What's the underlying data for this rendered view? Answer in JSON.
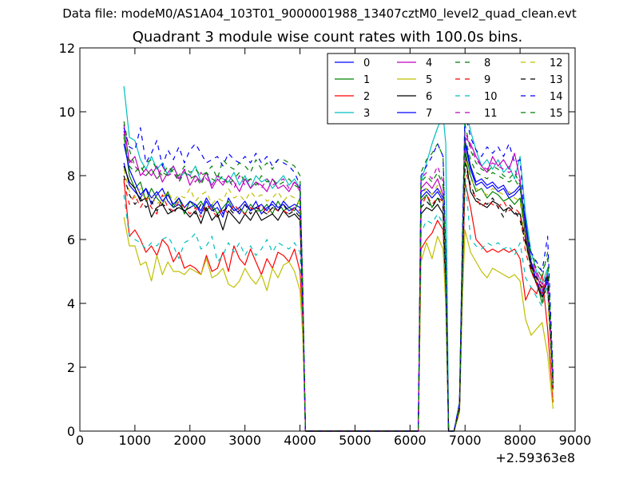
{
  "figure": {
    "suptitle": "Data file: modeM0/AS1A04_103T01_9000001988_13407cztM0_level2_quad_clean.evt"
  },
  "chart_data": {
    "type": "line",
    "title": "Quadrant 3 module wise count rates with 100.0s bins.",
    "xlabel": "",
    "ylabel": "",
    "x_offset_label": "+2.59363e8",
    "xlim": [
      0,
      9000
    ],
    "ylim": [
      0,
      12
    ],
    "xticks": [
      0,
      1000,
      2000,
      3000,
      4000,
      5000,
      6000,
      7000,
      8000,
      9000
    ],
    "yticks": [
      0,
      2,
      4,
      6,
      8,
      10,
      12
    ],
    "grid": false,
    "legend_position": "top-right",
    "legend_columns": 4,
    "x": [
      800,
      900,
      1000,
      1100,
      1200,
      1300,
      1400,
      1500,
      1600,
      1700,
      1800,
      1900,
      2000,
      2100,
      2200,
      2300,
      2400,
      2500,
      2600,
      2700,
      2800,
      2900,
      3000,
      3100,
      3200,
      3300,
      3400,
      3500,
      3600,
      3700,
      3800,
      3900,
      4000,
      4050,
      4100,
      4150,
      6100,
      6150,
      6200,
      6300,
      6400,
      6500,
      6600,
      6650,
      6700,
      6750,
      6800,
      6900,
      6950,
      7000,
      7100,
      7200,
      7300,
      7400,
      7500,
      7600,
      7700,
      7800,
      7900,
      8000,
      8100,
      8200,
      8300,
      8400,
      8500,
      8600
    ],
    "series": [
      {
        "name": "0",
        "color": "#0000ff",
        "dash": "solid",
        "values": [
          8.4,
          7.7,
          7.5,
          7.3,
          7.6,
          7.1,
          7.4,
          7.6,
          7.2,
          7.0,
          7.1,
          6.9,
          7.0,
          7.1,
          6.8,
          7.2,
          6.9,
          7.0,
          6.7,
          7.3,
          7.0,
          6.8,
          7.1,
          6.9,
          7.2,
          6.8,
          7.0,
          7.1,
          6.9,
          7.2,
          7.0,
          7.1,
          7.0,
          4.0,
          0.0,
          0.0,
          0.0,
          0.0,
          7.3,
          7.5,
          7.3,
          7.5,
          7.2,
          5.0,
          0.0,
          0.0,
          0.0,
          0.8,
          5.0,
          9.0,
          8.2,
          7.7,
          7.8,
          7.6,
          7.7,
          7.5,
          7.6,
          7.3,
          7.4,
          7.6,
          6.5,
          5.2,
          4.6,
          4.2,
          4.7,
          1.5
        ]
      },
      {
        "name": "1",
        "color": "#008000",
        "dash": "solid",
        "values": [
          9.3,
          8.0,
          7.6,
          7.8,
          7.2,
          7.6,
          7.3,
          7.1,
          7.5,
          7.0,
          7.3,
          6.8,
          7.2,
          7.0,
          7.2,
          6.9,
          7.1,
          6.8,
          7.0,
          7.2,
          6.9,
          7.0,
          6.8,
          7.1,
          6.9,
          6.9,
          7.1,
          6.8,
          7.2,
          6.9,
          7.0,
          6.9,
          7.3,
          4.0,
          0.0,
          0.0,
          0.0,
          0.0,
          7.2,
          7.4,
          7.0,
          7.3,
          7.2,
          5.0,
          0.0,
          0.0,
          0.0,
          0.8,
          5.0,
          8.8,
          8.0,
          7.5,
          7.6,
          7.3,
          7.5,
          7.4,
          7.2,
          7.3,
          7.1,
          7.3,
          6.2,
          5.0,
          4.7,
          4.0,
          5.0,
          1.5
        ]
      },
      {
        "name": "2",
        "color": "#ff0000",
        "dash": "solid",
        "values": [
          7.9,
          6.1,
          6.3,
          6.0,
          5.6,
          5.8,
          5.5,
          6.0,
          5.8,
          5.3,
          5.6,
          5.1,
          5.2,
          5.1,
          4.9,
          5.5,
          5.0,
          5.1,
          5.6,
          5.0,
          5.8,
          5.4,
          5.2,
          5.7,
          5.3,
          4.9,
          5.4,
          5.1,
          5.6,
          5.5,
          5.3,
          5.7,
          5.0,
          3.5,
          0.0,
          0.0,
          0.0,
          0.0,
          5.7,
          6.0,
          6.2,
          6.6,
          6.3,
          4.2,
          0.0,
          0.0,
          0.0,
          0.6,
          4.3,
          7.8,
          7.0,
          6.0,
          5.8,
          5.6,
          5.7,
          5.6,
          5.7,
          5.6,
          5.7,
          5.4,
          4.1,
          4.5,
          4.3,
          4.9,
          3.2,
          0.9
        ]
      },
      {
        "name": "3",
        "color": "#00bfbf",
        "dash": "solid",
        "values": [
          10.8,
          9.2,
          9.1,
          8.5,
          8.2,
          8.6,
          8.2,
          8.4,
          8.0,
          8.3,
          7.9,
          8.1,
          8.0,
          8.3,
          7.8,
          8.1,
          7.7,
          8.0,
          7.9,
          7.8,
          8.1,
          7.7,
          8.0,
          7.6,
          8.0,
          7.8,
          7.9,
          7.6,
          7.8,
          8.0,
          7.7,
          7.9,
          7.6,
          4.5,
          0.0,
          0.0,
          0.0,
          0.0,
          7.8,
          8.4,
          9.0,
          9.5,
          9.9,
          9.0,
          0.0,
          0.0,
          0.0,
          0.9,
          5.8,
          10.2,
          9.4,
          8.8,
          8.3,
          8.5,
          8.2,
          8.5,
          8.1,
          8.3,
          7.9,
          8.6,
          6.8,
          5.6,
          5.0,
          4.6,
          5.1,
          1.6
        ]
      },
      {
        "name": "4",
        "color": "#bf00bf",
        "dash": "solid",
        "values": [
          9.6,
          8.4,
          8.6,
          8.0,
          8.2,
          8.0,
          8.3,
          7.8,
          8.1,
          8.3,
          7.9,
          8.2,
          7.7,
          8.0,
          7.8,
          8.1,
          7.6,
          7.9,
          7.7,
          8.0,
          7.8,
          7.5,
          7.9,
          7.6,
          7.8,
          7.7,
          7.5,
          7.9,
          7.6,
          7.7,
          7.5,
          7.8,
          7.6,
          4.4,
          0.0,
          0.0,
          0.0,
          0.0,
          7.6,
          7.8,
          7.6,
          7.9,
          7.4,
          5.2,
          0.0,
          0.0,
          0.0,
          0.8,
          5.5,
          9.2,
          9.0,
          8.6,
          8.3,
          8.1,
          8.6,
          8.3,
          8.5,
          8.2,
          8.7,
          7.9,
          6.2,
          5.3,
          4.9,
          4.4,
          4.8,
          1.5
        ]
      },
      {
        "name": "5",
        "color": "#bfbf00",
        "dash": "solid",
        "values": [
          6.7,
          5.8,
          5.8,
          5.2,
          5.3,
          4.7,
          5.5,
          4.9,
          5.3,
          5.0,
          5.0,
          4.9,
          5.1,
          5.0,
          4.9,
          5.4,
          4.8,
          4.9,
          5.1,
          4.6,
          4.5,
          4.7,
          5.1,
          4.8,
          4.6,
          4.9,
          4.4,
          5.1,
          4.8,
          5.2,
          5.3,
          5.0,
          4.4,
          3.0,
          0.0,
          0.0,
          0.0,
          0.0,
          5.3,
          5.9,
          5.4,
          6.1,
          5.7,
          3.9,
          0.0,
          0.0,
          0.0,
          0.6,
          4.0,
          6.3,
          5.6,
          5.3,
          5.0,
          4.8,
          5.1,
          5.0,
          4.9,
          4.8,
          4.9,
          4.7,
          3.5,
          3.0,
          3.2,
          3.4,
          2.4,
          0.7
        ]
      },
      {
        "name": "6",
        "color": "#000000",
        "dash": "solid",
        "values": [
          8.3,
          7.8,
          7.6,
          7.2,
          7.3,
          6.7,
          7.0,
          7.1,
          6.8,
          6.9,
          7.0,
          6.9,
          6.7,
          6.9,
          6.5,
          7.0,
          6.6,
          6.8,
          6.3,
          6.9,
          6.7,
          6.5,
          6.8,
          6.6,
          6.9,
          6.6,
          6.7,
          6.8,
          6.6,
          6.9,
          6.7,
          6.8,
          6.6,
          4.0,
          0.0,
          0.0,
          0.0,
          0.0,
          6.8,
          7.0,
          6.9,
          7.1,
          6.8,
          4.6,
          0.0,
          0.0,
          0.0,
          0.7,
          4.8,
          8.7,
          7.5,
          7.2,
          7.1,
          7.0,
          7.2,
          7.1,
          6.9,
          7.0,
          6.8,
          6.8,
          6.0,
          5.1,
          4.6,
          4.2,
          4.5,
          1.3
        ]
      },
      {
        "name": "7",
        "color": "#0000ff",
        "dash": "solid",
        "values": [
          9.0,
          8.2,
          7.8,
          7.4,
          7.6,
          7.3,
          7.5,
          7.2,
          7.4,
          7.1,
          7.3,
          7.0,
          7.2,
          7.1,
          6.9,
          7.3,
          7.0,
          7.2,
          6.8,
          7.1,
          6.9,
          7.0,
          7.2,
          6.9,
          7.0,
          7.1,
          6.9,
          7.2,
          7.0,
          7.1,
          6.9,
          7.0,
          6.8,
          4.1,
          0.0,
          0.0,
          0.0,
          0.0,
          7.5,
          7.6,
          7.4,
          7.6,
          7.3,
          5.1,
          0.0,
          0.0,
          0.0,
          0.8,
          5.1,
          9.1,
          8.3,
          7.8,
          7.9,
          7.7,
          7.8,
          7.6,
          7.7,
          7.4,
          7.5,
          7.7,
          6.6,
          5.3,
          4.7,
          4.3,
          4.8,
          1.5
        ]
      },
      {
        "name": "8",
        "color": "#008000",
        "dash": "dashed",
        "values": [
          9.7,
          8.8,
          8.3,
          8.1,
          8.4,
          8.5,
          8.2,
          8.0,
          8.3,
          8.1,
          8.0,
          8.3,
          8.1,
          8.2,
          8.0,
          8.1,
          8.3,
          7.9,
          8.5,
          8.3,
          8.2,
          8.4,
          8.3,
          8.1,
          8.5,
          8.2,
          8.4,
          8.2,
          8.5,
          8.5,
          8.4,
          8.3,
          8.0,
          4.6,
          0.0,
          0.0,
          0.0,
          0.0,
          8.1,
          8.5,
          8.7,
          9.0,
          8.6,
          5.5,
          0.0,
          0.0,
          0.0,
          0.9,
          5.8,
          9.6,
          8.8,
          8.4,
          8.2,
          8.1,
          8.3,
          8.2,
          8.0,
          7.9,
          8.1,
          7.7,
          6.3,
          5.6,
          5.2,
          5.0,
          5.4,
          1.8
        ]
      },
      {
        "name": "9",
        "color": "#ff0000",
        "dash": "dashed",
        "values": [
          7.8,
          7.1,
          7.4,
          7.0,
          7.3,
          7.0,
          6.8,
          7.4,
          7.0,
          6.9,
          7.2,
          7.0,
          6.8,
          7.0,
          6.7,
          7.1,
          6.9,
          6.7,
          7.0,
          6.8,
          7.1,
          6.9,
          6.8,
          7.0,
          6.9,
          7.1,
          6.8,
          7.0,
          6.9,
          6.9,
          6.8,
          7.0,
          6.9,
          4.0,
          0.0,
          0.0,
          0.0,
          0.0,
          7.0,
          7.4,
          7.1,
          7.3,
          7.2,
          5.0,
          0.0,
          0.0,
          0.0,
          0.8,
          5.0,
          8.2,
          7.6,
          7.3,
          7.0,
          7.2,
          7.1,
          7.0,
          7.2,
          6.9,
          7.0,
          6.8,
          5.6,
          5.0,
          4.6,
          4.3,
          4.8,
          1.4
        ]
      },
      {
        "name": "10",
        "color": "#00bfbf",
        "dash": "dashed",
        "values": [
          7.4,
          6.1,
          6.0,
          5.9,
          5.7,
          5.9,
          5.8,
          6.0,
          6.1,
          5.8,
          5.4,
          5.9,
          6.0,
          6.2,
          5.7,
          5.8,
          6.1,
          5.3,
          5.5,
          5.9,
          5.6,
          5.9,
          5.5,
          5.8,
          5.5,
          5.7,
          6.0,
          5.6,
          5.9,
          5.8,
          5.7,
          5.9,
          5.6,
          3.6,
          0.0,
          0.0,
          0.0,
          0.0,
          6.2,
          6.6,
          6.5,
          6.8,
          6.5,
          4.5,
          0.0,
          0.0,
          0.0,
          0.7,
          4.5,
          8.0,
          6.0,
          5.8,
          5.7,
          5.9,
          5.8,
          5.9,
          5.7,
          5.8,
          5.5,
          5.9,
          4.8,
          4.5,
          4.2,
          3.9,
          4.6,
          1.3
        ]
      },
      {
        "name": "11",
        "color": "#bf00bf",
        "dash": "dashed",
        "values": [
          9.4,
          8.5,
          8.3,
          8.1,
          8.0,
          8.2,
          7.9,
          8.3,
          8.0,
          8.1,
          7.8,
          8.2,
          8.0,
          7.8,
          8.1,
          7.9,
          7.7,
          8.0,
          7.8,
          7.9,
          7.6,
          8.0,
          7.7,
          7.9,
          7.8,
          7.6,
          7.9,
          7.7,
          7.8,
          7.9,
          7.6,
          7.8,
          7.5,
          4.3,
          0.0,
          0.0,
          0.0,
          0.0,
          7.9,
          8.1,
          7.9,
          8.3,
          7.8,
          5.4,
          0.0,
          0.0,
          0.0,
          0.8,
          5.6,
          9.4,
          8.9,
          8.5,
          8.3,
          8.2,
          8.4,
          8.3,
          8.2,
          8.1,
          8.2,
          7.8,
          6.0,
          5.4,
          5.0,
          4.6,
          4.9,
          1.6
        ]
      },
      {
        "name": "12",
        "color": "#bfbf00",
        "dash": "dashed",
        "values": [
          8.2,
          7.5,
          7.3,
          7.6,
          7.2,
          7.4,
          7.1,
          7.3,
          7.5,
          7.2,
          7.4,
          7.3,
          7.6,
          7.2,
          7.4,
          7.5,
          7.1,
          7.3,
          7.2,
          7.6,
          7.3,
          7.4,
          7.2,
          7.5,
          7.3,
          7.4,
          7.2,
          7.3,
          7.5,
          7.2,
          7.4,
          7.3,
          7.1,
          4.2,
          0.0,
          0.0,
          0.0,
          0.0,
          7.4,
          7.6,
          7.4,
          7.7,
          7.3,
          5.1,
          0.0,
          0.0,
          0.0,
          0.8,
          5.3,
          8.6,
          7.9,
          7.6,
          7.5,
          7.4,
          7.6,
          7.5,
          7.4,
          7.5,
          7.3,
          7.2,
          5.8,
          5.1,
          4.7,
          4.4,
          4.3,
          1.0
        ]
      },
      {
        "name": "13",
        "color": "#000000",
        "dash": "dashed",
        "values": [
          8.0,
          7.4,
          7.1,
          7.3,
          7.0,
          7.2,
          6.9,
          7.1,
          7.0,
          6.8,
          7.1,
          6.9,
          7.0,
          6.8,
          7.1,
          6.9,
          7.0,
          6.7,
          6.9,
          7.0,
          6.8,
          6.9,
          7.1,
          6.8,
          7.0,
          6.9,
          6.8,
          7.0,
          6.9,
          7.1,
          6.8,
          6.9,
          6.7,
          4.0,
          0.0,
          0.0,
          0.0,
          0.0,
          7.0,
          7.2,
          7.0,
          7.3,
          7.0,
          4.9,
          0.0,
          0.0,
          0.0,
          0.7,
          5.0,
          8.4,
          7.7,
          7.3,
          7.2,
          7.1,
          7.3,
          7.0,
          6.7,
          7.1,
          6.9,
          6.6,
          5.9,
          5.2,
          4.8,
          4.5,
          4.9,
          1.5
        ]
      },
      {
        "name": "14",
        "color": "#0000ff",
        "dash": "dashed",
        "values": [
          9.5,
          8.9,
          8.8,
          9.5,
          8.4,
          8.7,
          9.1,
          8.3,
          8.8,
          8.5,
          8.9,
          8.4,
          8.8,
          9.0,
          8.7,
          8.4,
          8.5,
          8.6,
          8.3,
          8.7,
          8.5,
          8.4,
          8.6,
          8.4,
          8.7,
          8.4,
          8.6,
          8.3,
          8.5,
          8.4,
          8.3,
          8.1,
          7.7,
          4.5,
          0.0,
          0.0,
          0.0,
          0.0,
          8.0,
          8.3,
          8.6,
          9.0,
          8.6,
          5.6,
          0.0,
          0.0,
          0.0,
          0.9,
          6.0,
          10.0,
          9.2,
          8.8,
          8.6,
          8.9,
          8.7,
          8.9,
          8.6,
          9.0,
          8.4,
          8.5,
          6.4,
          5.6,
          5.3,
          5.0,
          6.1,
          1.8
        ]
      },
      {
        "name": "15",
        "color": "#008000",
        "dash": "dashed",
        "values": [
          9.2,
          8.3,
          8.1,
          8.3,
          8.0,
          8.2,
          7.9,
          8.1,
          8.0,
          8.2,
          7.8,
          8.1,
          7.9,
          8.0,
          7.7,
          8.1,
          7.9,
          7.8,
          8.0,
          7.7,
          7.9,
          8.1,
          7.8,
          7.9,
          7.7,
          8.0,
          7.8,
          7.9,
          7.7,
          7.8,
          7.9,
          7.7,
          7.6,
          4.4,
          0.0,
          0.0,
          0.0,
          0.0,
          7.8,
          8.0,
          7.8,
          8.1,
          7.7,
          5.3,
          0.0,
          0.0,
          0.0,
          0.8,
          5.5,
          9.2,
          8.5,
          8.1,
          8.0,
          7.9,
          8.1,
          8.0,
          7.9,
          7.8,
          7.9,
          7.6,
          6.1,
          5.4,
          5.1,
          4.8,
          5.6,
          1.7
        ]
      }
    ]
  }
}
